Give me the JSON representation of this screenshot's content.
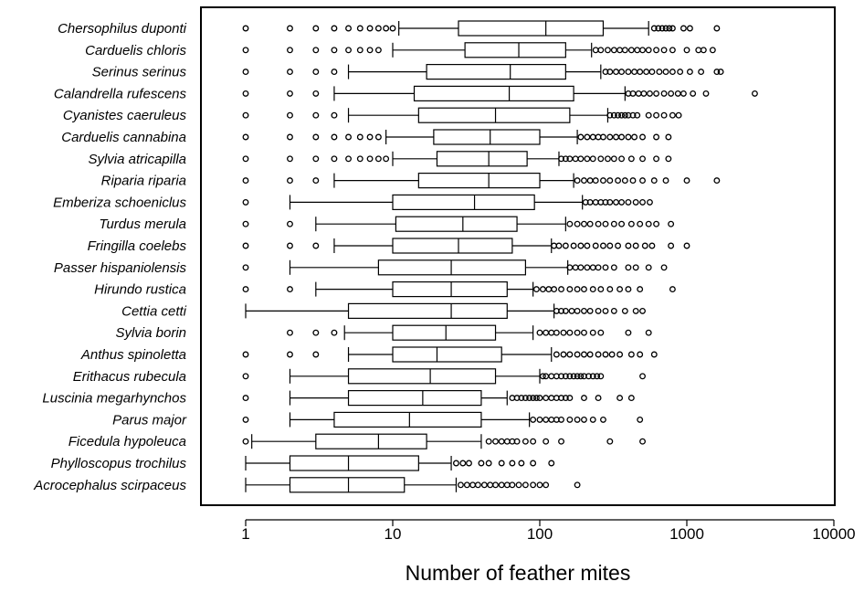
{
  "chart_data": {
    "type": "boxplot",
    "title": "",
    "xlabel": "Number of feather mites",
    "ylabel": "",
    "x_scale": "log",
    "xlim": [
      0.5,
      10000
    ],
    "x_ticks": [
      1,
      10,
      100,
      1000,
      10000
    ],
    "x_tick_labels": [
      "1",
      "10",
      "100",
      "1000",
      "10000"
    ],
    "grid": false,
    "categories": [
      "Chersophilus duponti",
      "Carduelis chloris",
      "Serinus serinus",
      "Calandrella rufescens",
      "Cyanistes caeruleus",
      "Carduelis cannabina",
      "Sylvia atricapilla",
      "Riparia riparia",
      "Emberiza schoeniclus",
      "Turdus merula",
      "Fringilla coelebs",
      "Passer hispaniolensis",
      "Hirundo rustica",
      "Cettia cetti",
      "Sylvia borin",
      "Anthus spinoletta",
      "Erithacus rubecula",
      "Luscinia megarhynchos",
      "Parus major",
      "Ficedula hypoleuca",
      "Phylloscopus trochilus",
      "Acrocephalus scirpaceus"
    ],
    "boxes": [
      {
        "whisker_low": 11,
        "q1": 28,
        "median": 110,
        "q3": 270,
        "whisker_high": 550,
        "outliers": [
          1,
          2,
          3,
          4,
          5,
          6,
          7,
          8,
          9,
          10,
          600,
          640,
          680,
          720,
          760,
          800,
          950,
          1050,
          1600
        ]
      },
      {
        "whisker_low": 10,
        "q1": 31,
        "median": 72,
        "q3": 150,
        "whisker_high": 225,
        "outliers": [
          1,
          2,
          3,
          4,
          5,
          6,
          7,
          8,
          240,
          260,
          290,
          320,
          350,
          380,
          420,
          460,
          500,
          550,
          620,
          700,
          800,
          1000,
          1200,
          1300,
          1500
        ]
      },
      {
        "whisker_low": 5,
        "q1": 17,
        "median": 63,
        "q3": 150,
        "whisker_high": 260,
        "outliers": [
          1,
          2,
          3,
          4,
          280,
          300,
          330,
          360,
          400,
          440,
          480,
          530,
          580,
          650,
          720,
          800,
          900,
          1050,
          1250,
          1600,
          1700
        ]
      },
      {
        "whisker_low": 4,
        "q1": 14,
        "median": 62,
        "q3": 170,
        "whisker_high": 380,
        "outliers": [
          1,
          2,
          3,
          400,
          430,
          470,
          510,
          560,
          620,
          700,
          780,
          870,
          950,
          1100,
          1350,
          2900
        ]
      },
      {
        "whisker_low": 5,
        "q1": 15,
        "median": 50,
        "q3": 160,
        "whisker_high": 290,
        "outliers": [
          1,
          2,
          3,
          4,
          300,
          320,
          340,
          360,
          380,
          400,
          430,
          460,
          550,
          620,
          700,
          800,
          880
        ]
      },
      {
        "whisker_low": 9,
        "q1": 19,
        "median": 46,
        "q3": 100,
        "whisker_high": 180,
        "outliers": [
          1,
          2,
          3,
          4,
          5,
          6,
          7,
          8,
          190,
          210,
          230,
          250,
          270,
          300,
          330,
          360,
          400,
          440,
          500,
          620,
          750
        ]
      },
      {
        "whisker_low": 10,
        "q1": 20,
        "median": 45,
        "q3": 82,
        "whisker_high": 135,
        "outliers": [
          1,
          2,
          3,
          4,
          5,
          6,
          7,
          8,
          9,
          140,
          150,
          160,
          175,
          190,
          210,
          230,
          260,
          290,
          320,
          360,
          420,
          500,
          620,
          750
        ]
      },
      {
        "whisker_low": 4,
        "q1": 15,
        "median": 45,
        "q3": 100,
        "whisker_high": 170,
        "outliers": [
          1,
          2,
          3,
          180,
          200,
          220,
          240,
          270,
          300,
          340,
          380,
          430,
          500,
          600,
          720,
          1000,
          1600
        ]
      },
      {
        "whisker_low": 2,
        "q1": 10,
        "median": 36,
        "q3": 92,
        "whisker_high": 195,
        "outliers": [
          1,
          205,
          220,
          240,
          260,
          280,
          300,
          330,
          360,
          400,
          450,
          500,
          560
        ]
      },
      {
        "whisker_low": 3,
        "q1": 10.5,
        "median": 30,
        "q3": 70,
        "whisker_high": 150,
        "outliers": [
          1,
          2,
          160,
          180,
          200,
          220,
          250,
          280,
          320,
          360,
          420,
          480,
          550,
          620,
          780
        ]
      },
      {
        "whisker_low": 4,
        "q1": 10,
        "median": 28,
        "q3": 65,
        "whisker_high": 120,
        "outliers": [
          1,
          2,
          3,
          125,
          135,
          150,
          170,
          190,
          210,
          240,
          270,
          300,
          340,
          400,
          450,
          520,
          580,
          780,
          1000
        ]
      },
      {
        "whisker_low": 2,
        "q1": 8,
        "median": 25,
        "q3": 80,
        "whisker_high": 155,
        "outliers": [
          1,
          160,
          175,
          190,
          210,
          230,
          250,
          280,
          320,
          400,
          450,
          550,
          700
        ]
      },
      {
        "whisker_low": 3,
        "q1": 10,
        "median": 25,
        "q3": 60,
        "whisker_high": 90,
        "outliers": [
          1,
          2,
          95,
          105,
          115,
          125,
          140,
          160,
          180,
          200,
          230,
          260,
          300,
          350,
          400,
          480,
          800
        ]
      },
      {
        "whisker_low": 1,
        "q1": 5,
        "median": 25,
        "q3": 60,
        "whisker_high": 125,
        "outliers": [
          130,
          140,
          150,
          165,
          180,
          200,
          220,
          250,
          280,
          320,
          380,
          450,
          500
        ]
      },
      {
        "whisker_low": 4.7,
        "q1": 10,
        "median": 23,
        "q3": 50,
        "whisker_high": 90,
        "outliers": [
          2,
          3,
          4,
          100,
          110,
          120,
          130,
          145,
          160,
          180,
          200,
          230,
          260,
          400,
          550
        ]
      },
      {
        "whisker_low": 5,
        "q1": 10,
        "median": 20,
        "q3": 55,
        "whisker_high": 120,
        "outliers": [
          1,
          2,
          3,
          130,
          145,
          160,
          180,
          200,
          220,
          250,
          280,
          310,
          350,
          420,
          480,
          600
        ]
      },
      {
        "whisker_low": 2,
        "q1": 5,
        "median": 18,
        "q3": 50,
        "whisker_high": 100,
        "outliers": [
          1,
          105,
          110,
          120,
          130,
          140,
          150,
          160,
          170,
          180,
          190,
          200,
          215,
          230,
          245,
          260,
          500
        ]
      },
      {
        "whisker_low": 2,
        "q1": 5,
        "median": 16,
        "q3": 40,
        "whisker_high": 60,
        "outliers": [
          1,
          65,
          70,
          75,
          80,
          85,
          90,
          95,
          100,
          110,
          120,
          130,
          140,
          150,
          160,
          200,
          250,
          350,
          420
        ]
      },
      {
        "whisker_low": 2,
        "q1": 4,
        "median": 13,
        "q3": 40,
        "whisker_high": 85,
        "outliers": [
          1,
          90,
          100,
          110,
          120,
          130,
          140,
          160,
          180,
          200,
          230,
          270,
          480
        ]
      },
      {
        "whisker_low": 1.1,
        "q1": 3,
        "median": 8,
        "q3": 17,
        "whisker_high": 40,
        "outliers": [
          1,
          45,
          50,
          55,
          60,
          65,
          70,
          80,
          90,
          110,
          140,
          300,
          500
        ]
      },
      {
        "whisker_low": 1,
        "q1": 2,
        "median": 5,
        "q3": 15,
        "whisker_high": 25,
        "outliers": [
          27,
          30,
          33,
          40,
          45,
          55,
          65,
          75,
          90,
          120
        ]
      },
      {
        "whisker_low": 1,
        "q1": 2,
        "median": 5,
        "q3": 12,
        "whisker_high": 27,
        "outliers": [
          29,
          32,
          35,
          38,
          42,
          46,
          50,
          55,
          60,
          65,
          72,
          80,
          90,
          100,
          110,
          180
        ]
      }
    ]
  }
}
